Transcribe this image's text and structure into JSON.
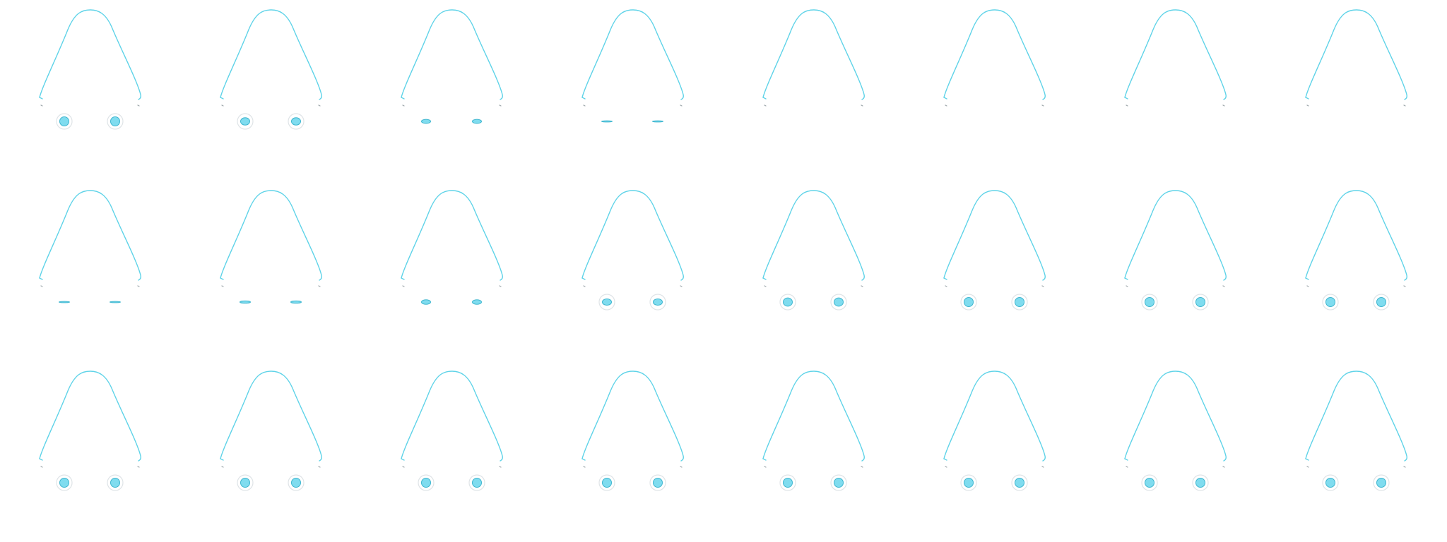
{
  "sheet": {
    "columns": 8,
    "rows": 3,
    "colors": {
      "background": "#ffffff",
      "outline": "#5fd3e8",
      "feet": "#9aa4a8",
      "eye_fill": "#7fdcef",
      "eye_stroke": "#3fb6cf",
      "eye_ring": "#dfe4e7"
    },
    "frames": [
      {
        "eye_open": 1.0
      },
      {
        "eye_open": 0.8
      },
      {
        "eye_open": 0.45
      },
      {
        "eye_open": 0.12
      },
      {
        "eye_open": 0
      },
      {
        "eye_open": 0
      },
      {
        "eye_open": 0
      },
      {
        "eye_open": 0
      },
      {
        "eye_open": 0.12
      },
      {
        "eye_open": 0.25
      },
      {
        "eye_open": 0.5
      },
      {
        "eye_open": 0.7
      },
      {
        "eye_open": 0.9
      },
      {
        "eye_open": 1.0
      },
      {
        "eye_open": 1.0
      },
      {
        "eye_open": 1.0
      },
      {
        "eye_open": 1.0
      },
      {
        "eye_open": 1.0
      },
      {
        "eye_open": 1.0
      },
      {
        "eye_open": 1.0
      },
      {
        "eye_open": 1.0
      },
      {
        "eye_open": 1.0
      },
      {
        "eye_open": 1.0
      },
      {
        "eye_open": 1.0
      }
    ]
  }
}
